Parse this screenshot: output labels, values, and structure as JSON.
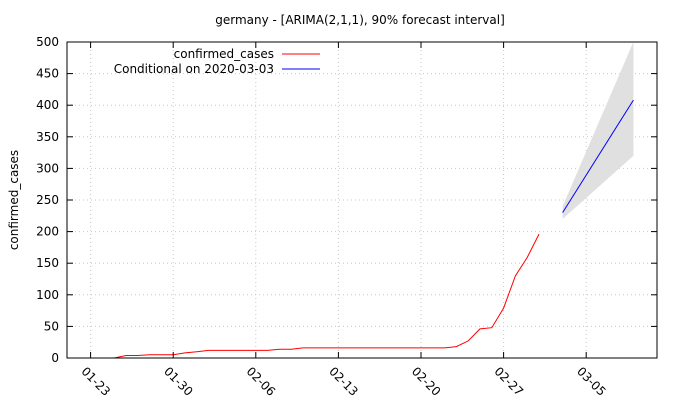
{
  "chart_data": {
    "type": "line",
    "title": "germany -  [ARIMA(2,1,1), 90% forecast interval]",
    "ylabel": "confirmed_cases",
    "xlabel": "",
    "ylim": [
      0,
      500
    ],
    "yticks": [
      0,
      50,
      100,
      150,
      200,
      250,
      300,
      350,
      400,
      450,
      500
    ],
    "xticks": [
      "01-23",
      "01-30",
      "02-06",
      "02-13",
      "02-20",
      "02-27",
      "03-05"
    ],
    "xtick_days": [
      2,
      9,
      16,
      23,
      30,
      37,
      44
    ],
    "xlim_days": [
      0,
      50
    ],
    "grid": true,
    "legend_position": "top-left",
    "series": [
      {
        "name": "confirmed_cases",
        "color": "#ff0000",
        "x": [
          0,
          1,
          2,
          3,
          4,
          5,
          6,
          7,
          8,
          9,
          10,
          11,
          12,
          13,
          14,
          15,
          16,
          17,
          18,
          19,
          20,
          21,
          22,
          23,
          24,
          25,
          26,
          27,
          28,
          29,
          30,
          31,
          32,
          33,
          34,
          35,
          36,
          37,
          38,
          39,
          40,
          41,
          42
        ],
        "values": [
          0,
          0,
          0,
          0,
          0,
          4,
          4,
          5,
          5,
          5,
          8,
          10,
          12,
          12,
          12,
          12,
          12,
          12,
          14,
          14,
          16,
          16,
          16,
          16,
          16,
          16,
          16,
          16,
          16,
          16,
          16,
          16,
          16,
          18,
          27,
          46,
          48,
          79,
          130,
          159,
          196,
          null,
          null
        ]
      },
      {
        "name": "Conditional on 2020-03-03",
        "color": "#0000ff",
        "x": [
          42,
          48
        ],
        "values": [
          230,
          408
        ]
      }
    ],
    "forecast_interval": {
      "color": "#e0e0e0",
      "x": [
        42,
        48
      ],
      "lower": [
        220,
        320
      ],
      "upper": [
        240,
        500
      ]
    }
  }
}
